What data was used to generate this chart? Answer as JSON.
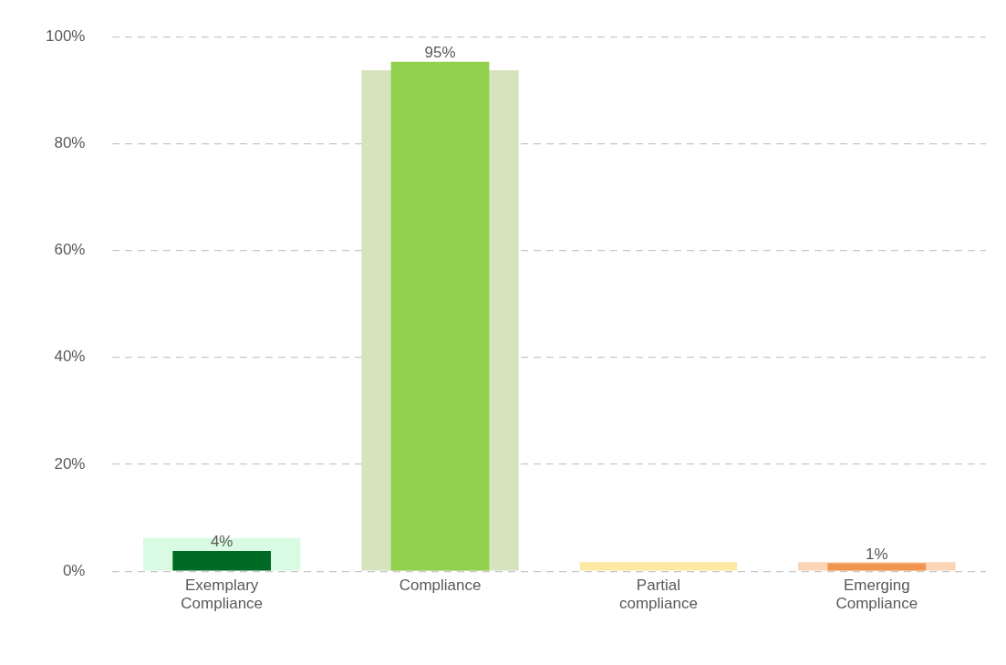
{
  "chart_data": {
    "type": "bar",
    "categories": [
      "Exemplary Compliance",
      "Compliance",
      "Partial compliance",
      "Emerging Compliance"
    ],
    "series": [
      {
        "colors": [
          "#d9fbe4",
          "#d6e3bd",
          "#fde9a2",
          "#fbd3b5"
        ],
        "values": [
          6.2,
          93.7,
          1.7,
          1.7
        ]
      },
      {
        "colors": [
          "#006a25",
          "#92d050",
          "#ffd966",
          "#f0954f"
        ],
        "values": [
          3.8,
          95.3,
          null,
          1.5
        ],
        "value_labels": [
          "4%",
          "95%",
          null,
          "1%"
        ]
      }
    ],
    "ylim": [
      0,
      100
    ],
    "yticks": [
      {
        "value": 0,
        "label": "0%"
      },
      {
        "value": 20,
        "label": "20%"
      },
      {
        "value": 40,
        "label": "40%"
      },
      {
        "value": 60,
        "label": "60%"
      },
      {
        "value": 80,
        "label": "80%"
      },
      {
        "value": 100,
        "label": "100%"
      }
    ],
    "grid": "y",
    "legend": false
  }
}
